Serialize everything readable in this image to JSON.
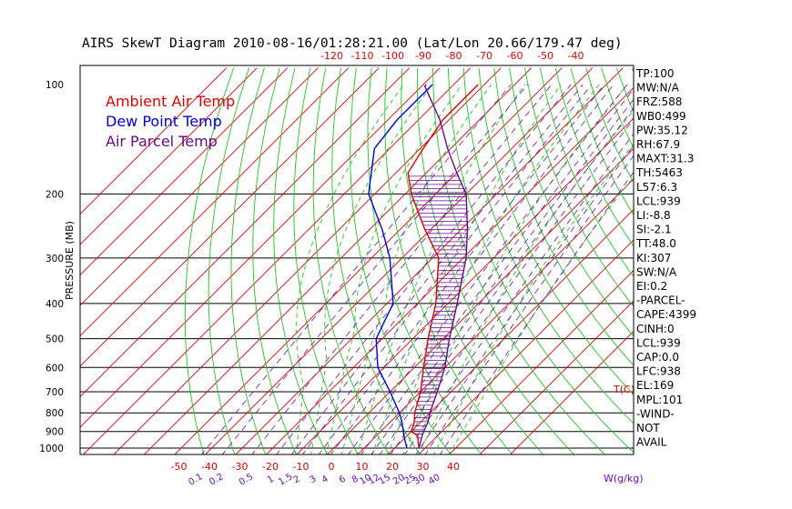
{
  "chart_data": {
    "type": "line",
    "title": "AIRS SkewT Diagram 2010-08-16/01:28:21.00 (Lat/Lon 20.66/179.47 deg)",
    "ylabel": "PRESSURE (MB)",
    "xlabel_bottom": "T(C)",
    "mixing_ratio_label": "W(g/kg)",
    "legend": [
      {
        "label": "Ambient Air Temp",
        "color": "#e00000"
      },
      {
        "label": "Dew Point Temp",
        "color": "#0000e0"
      },
      {
        "label": "Air Parcel Temp",
        "color": "#6a0a8a"
      }
    ],
    "pressure_ticks": [
      100,
      200,
      300,
      400,
      500,
      600,
      700,
      800,
      900,
      1000
    ],
    "pressure_tick_labels": [
      "100",
      "200",
      "300",
      "400",
      "500",
      "600",
      "700",
      "800",
      "900",
      "1000"
    ],
    "top_temp_ticks": [
      -120,
      -110,
      -100,
      -90,
      -80,
      -70,
      -60,
      -50,
      -40
    ],
    "top_temp_labels": [
      "-120",
      "-110",
      "-100",
      "-90",
      "-80",
      "-70",
      "-60",
      "-50",
      "-40"
    ],
    "bottom_temp_ticks": [
      -50,
      -40,
      -30,
      -20,
      -10,
      0,
      10,
      20,
      30,
      40
    ],
    "bottom_temp_labels": [
      "-50",
      "-40",
      "-30",
      "-20",
      "-10",
      "0",
      "10",
      "20",
      "30",
      "40"
    ],
    "mixing_ratio_values": [
      0.1,
      0.2,
      0.5,
      1,
      1.5,
      2,
      3,
      4,
      6,
      8,
      10,
      12,
      15,
      20,
      25,
      30,
      40
    ],
    "mixing_ratio_labels": [
      "0.1",
      "0.2",
      "0.5",
      "1",
      "1.5",
      "2",
      "3",
      "4",
      "6",
      "8",
      "10",
      "12",
      "15",
      "20",
      "25",
      "30",
      "40"
    ],
    "plim": [
      100,
      1050
    ],
    "series": [
      {
        "name": "Ambient Air Temp",
        "points": [
          [
            1000,
            28
          ],
          [
            950,
            25
          ],
          [
            925,
            23.5
          ],
          [
            900,
            20
          ],
          [
            850,
            18
          ],
          [
            800,
            15
          ],
          [
            700,
            10
          ],
          [
            600,
            3
          ],
          [
            500,
            -5
          ],
          [
            400,
            -14
          ],
          [
            300,
            -28
          ],
          [
            250,
            -42
          ],
          [
            200,
            -58
          ],
          [
            175,
            -66
          ],
          [
            150,
            -69
          ],
          [
            125,
            -72
          ],
          [
            100,
            -72
          ]
        ]
      },
      {
        "name": "Dew Point Temp",
        "points": [
          [
            1000,
            24
          ],
          [
            925,
            19
          ],
          [
            850,
            14
          ],
          [
            800,
            10
          ],
          [
            700,
            0
          ],
          [
            600,
            -12
          ],
          [
            500,
            -22
          ],
          [
            400,
            -28
          ],
          [
            300,
            -44
          ],
          [
            250,
            -56
          ],
          [
            200,
            -72
          ],
          [
            150,
            -85
          ],
          [
            125,
            -87
          ],
          [
            100,
            -87
          ]
        ]
      },
      {
        "name": "Air Parcel Temp",
        "points": [
          [
            1000,
            28
          ],
          [
            938,
            25.5
          ],
          [
            900,
            24
          ],
          [
            850,
            22.5
          ],
          [
            800,
            20
          ],
          [
            700,
            15.5
          ],
          [
            600,
            10
          ],
          [
            500,
            2
          ],
          [
            400,
            -7
          ],
          [
            300,
            -19
          ],
          [
            250,
            -28
          ],
          [
            200,
            -40
          ],
          [
            175,
            -50
          ],
          [
            150,
            -61
          ],
          [
            125,
            -73
          ],
          [
            101,
            -89
          ],
          [
            100,
            -89
          ]
        ]
      }
    ],
    "indices": [
      "TP:100",
      "MW:N/A",
      "FRZ:588",
      "WB0:499",
      "PW:35.12",
      "RH:67.9",
      "MAXT:31.3",
      "TH:5463",
      "L57:6.3",
      "LCL:939",
      "LI:-8.8",
      "SI:-2.1",
      "TT:48.0",
      "KI:307",
      "SW:N/A",
      "EI:0.2",
      "-PARCEL-",
      "CAPE:4399",
      "CINH:0",
      "LCL:939",
      "CAP:0.0",
      "LFC:938",
      "EL:169",
      "MPL:101",
      "-WIND-",
      "NOT",
      "AVAIL"
    ]
  }
}
